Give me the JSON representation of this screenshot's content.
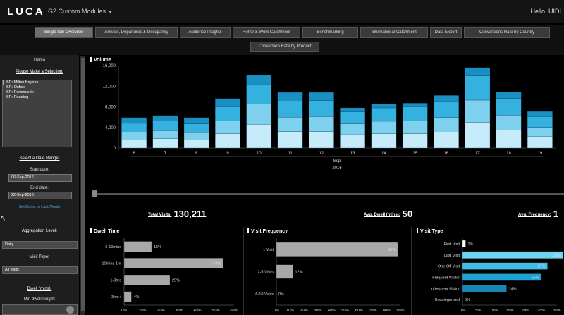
{
  "app": {
    "logo": "LUCA",
    "module_menu": "G2 Custom Modules",
    "user_greeting": "Hello, UIDI"
  },
  "tabs": [
    {
      "label": "Single Site Overview",
      "active": true
    },
    {
      "label": "Arrivals, Departures & Occupancy",
      "active": false
    },
    {
      "label": "Audience Insights",
      "active": false
    },
    {
      "label": "Home & Work Catchment",
      "active": false
    },
    {
      "label": "Benchmarking",
      "active": false
    },
    {
      "label": "International Catchment",
      "active": false
    },
    {
      "label": "Data Export",
      "active": false
    },
    {
      "label": "Conversions Rate by Country",
      "active": false
    },
    {
      "label": "Conversion Rate by Product",
      "active": false
    }
  ],
  "sidebar": {
    "demo_label": "Demo",
    "selection_heading": "Please Make a Selection:",
    "sites": [
      "SR: Milton Keynes",
      "SR: Oxford",
      "SR: Portsmouth",
      "SR: Reading"
    ],
    "date_range_heading": "Select a Date Range:",
    "start_label": "Start date:",
    "start_value": "06-Sep-2016",
    "end_label": "End date:",
    "end_value": "22-Sep-2016",
    "set_dates_link": "Set Dates to Last Month",
    "aggregation_label": "Aggregation Level:",
    "aggregation_value": "Daily",
    "visit_type_label": "Visit Type:",
    "visit_type_value": "All visits",
    "dwell_label": "Dwell (mins):",
    "min_dwell_label": "Min dwell length:"
  },
  "kpis": {
    "total_visits_label": "Total Visits:",
    "total_visits_value": "130,211",
    "avg_dwell_label": "Avg. Dwell (mins):",
    "avg_dwell_value": "50",
    "avg_frequency_label": "Avg. Frequency:",
    "avg_frequency_value": "1"
  },
  "colors": {
    "bar_dark": "#1a8fc4",
    "bar_mid": "#34b1df",
    "bar_light": "#7dd0ee",
    "bar_pale": "#c6ecfb",
    "gray_bar": "#a8a8a8"
  },
  "chart_data": [
    {
      "type": "bar",
      "stacked": true,
      "title": "Volume",
      "categories": [
        "6",
        "7",
        "8",
        "9",
        "10",
        "11",
        "12",
        "13",
        "14",
        "15",
        "16",
        "17",
        "18",
        "19"
      ],
      "x_sub_label": "Sep",
      "x_year_label": "2016",
      "ylim": [
        0,
        16000
      ],
      "yticks": [
        "0",
        "4,000",
        "8,000",
        "12,000",
        "16,000"
      ],
      "ytick_values": [
        0,
        4000,
        8000,
        12000,
        16000
      ],
      "series": [
        {
          "color": "#c6ecfb",
          "values": [
            1600,
            1800,
            1600,
            2800,
            4600,
            3200,
            3200,
            2600,
            2800,
            2800,
            3100,
            5000,
            3500,
            2200
          ]
        },
        {
          "color": "#7dd0ee",
          "values": [
            1500,
            1600,
            1400,
            2500,
            3900,
            2800,
            2900,
            2100,
            2400,
            2500,
            2800,
            4300,
            2900,
            1800
          ]
        },
        {
          "color": "#34b1df",
          "values": [
            1700,
            1900,
            1700,
            2700,
            3800,
            3100,
            3100,
            2300,
            2600,
            2700,
            3100,
            4700,
            3200,
            2100
          ]
        },
        {
          "color": "#1a8fc4",
          "values": [
            1100,
            1000,
            1200,
            1600,
            1800,
            1700,
            1600,
            800,
            800,
            700,
            1200,
            1600,
            1300,
            1000
          ]
        }
      ]
    },
    {
      "type": "bar",
      "orientation": "horizontal",
      "title": "Dwell Time",
      "categories": [
        "5-10mins",
        "10mins-1hr",
        "1-3hrs",
        "3hrs+"
      ],
      "values": [
        15,
        54,
        25,
        4
      ],
      "value_labels": [
        "15%",
        "54%",
        "25%",
        "4%"
      ],
      "xlim": [
        0,
        60
      ],
      "xticks": [
        "0%",
        "10%",
        "20%",
        "30%",
        "40%",
        "50%",
        "60%"
      ]
    },
    {
      "type": "bar",
      "orientation": "horizontal",
      "title": "Visit Frequency",
      "categories": [
        "1 Visit",
        "2-5 Visits",
        "6-10 Visits"
      ],
      "values": [
        88,
        12,
        0
      ],
      "value_labels": [
        "88%",
        "12%",
        "0%"
      ],
      "xlim": [
        0,
        90
      ],
      "xticks": [
        "0%",
        "10%",
        "20%",
        "30%",
        "40%",
        "50%",
        "60%",
        "70%",
        "80%",
        "90%"
      ]
    },
    {
      "type": "bar",
      "orientation": "horizontal",
      "title": "Visit Type",
      "categories": [
        "First Visit",
        "Last Visit",
        "One Off Visit",
        "Frequent Visitor",
        "Infrequent Visitor",
        "Uncategorised"
      ],
      "values": [
        1,
        32,
        27,
        25,
        14,
        0
      ],
      "value_labels": [
        "1%",
        "32%",
        "27%",
        "25%",
        "14%",
        "0%"
      ],
      "colors": [
        "#ffffff",
        "#6fd4f2",
        "#3fbbe4",
        "#20a2d4",
        "#1a86b4",
        "#1a86b4"
      ],
      "xlim": [
        0,
        30
      ],
      "xticks": [
        "0%",
        "5%",
        "10%",
        "15%",
        "20%",
        "25%",
        "30%"
      ]
    }
  ]
}
